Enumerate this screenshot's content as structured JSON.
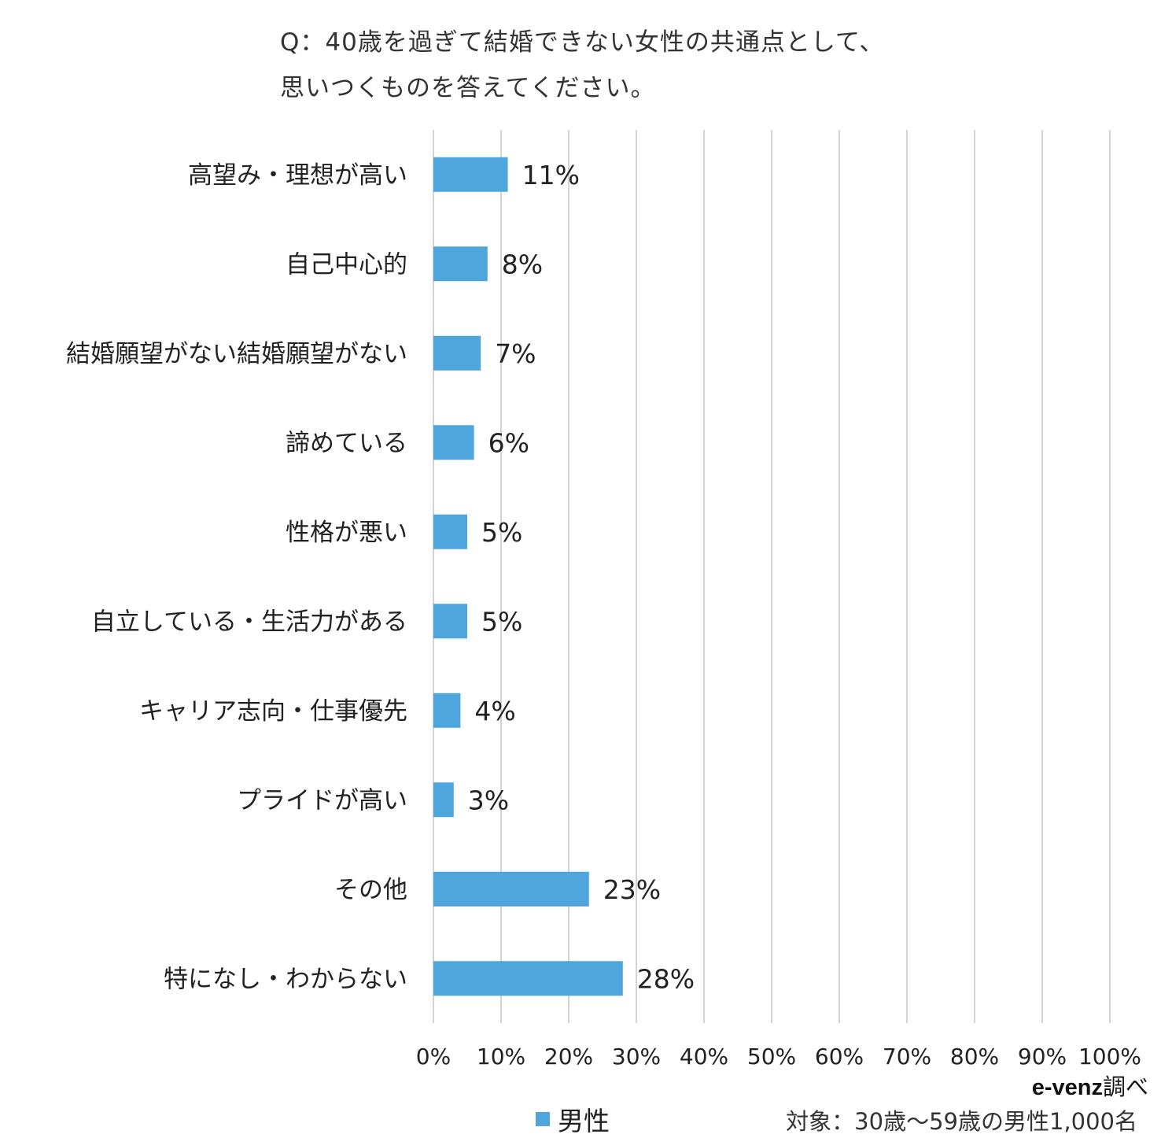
{
  "title_line1": "Q：40歳を過ぎて結婚できない女性の共通点として、",
  "title_line2": "思いつくものを答えてください。",
  "chart_data": {
    "type": "bar",
    "orientation": "horizontal",
    "categories": [
      "高望み・理想が高い",
      "自己中心的",
      "結婚願望がない結婚願望がない",
      "諦めている",
      "性格が悪い",
      "自立している・生活力がある",
      "キャリア志向・仕事優先",
      "プライドが高い",
      "その他",
      "特になし・わからない"
    ],
    "series": [
      {
        "name": "男性",
        "values": [
          11,
          8,
          7,
          6,
          5,
          5,
          4,
          3,
          23,
          28
        ]
      }
    ],
    "value_labels": [
      "11%",
      "8%",
      "7%",
      "6%",
      "5%",
      "5%",
      "4%",
      "3%",
      "23%",
      "28%"
    ],
    "xticks": [
      "0%",
      "10%",
      "20%",
      "30%",
      "40%",
      "50%",
      "60%",
      "70%",
      "80%",
      "90%",
      "100%"
    ],
    "xlim": [
      0,
      100
    ],
    "grid": true,
    "legend_position": "bottom",
    "bar_color": "#4ea6dc"
  },
  "source_brand": "e-venz",
  "source_suffix": "調べ",
  "target_note": "対象：30歳～59歳の男性1,000名"
}
